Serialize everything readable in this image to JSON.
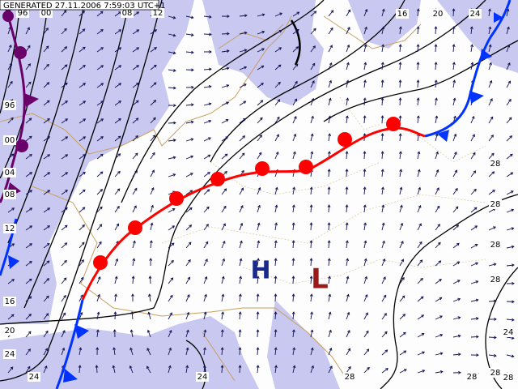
{
  "header": {
    "generated": "GENERATED 27.11.2006 7:59:03 UTC+1"
  },
  "pressure_centers": [
    {
      "label": "H"
    },
    {
      "label": "L"
    }
  ],
  "isobar_labels": {
    "top": [
      "96",
      "00",
      "08",
      "12",
      "16",
      "20",
      "24"
    ],
    "left": [
      "96",
      "00",
      "04",
      "08",
      "12",
      "16",
      "20",
      "24"
    ],
    "right": [
      "28",
      "28",
      "28",
      "28",
      "24"
    ],
    "bottom": [
      "24",
      "24",
      "28",
      "28",
      "28",
      "28"
    ]
  }
}
